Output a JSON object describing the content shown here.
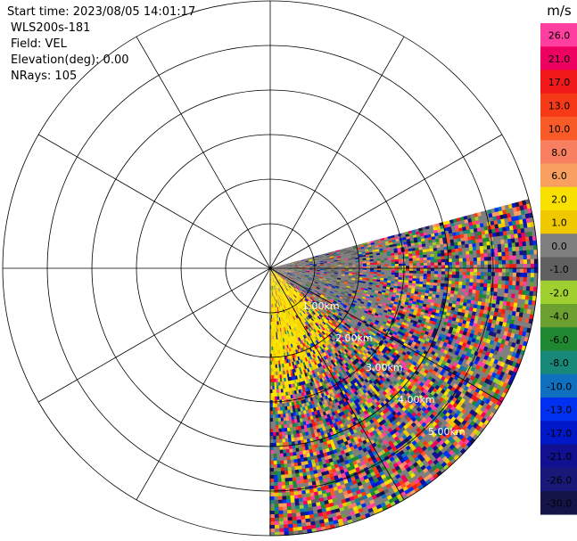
{
  "header": {
    "start_time": "Start time: 2023/08/05 14:01:17",
    "instrument": "WLS200s-181",
    "field": "Field: VEL",
    "elevation": "Elevation(deg): 0.00",
    "nrays": "NRays: 105"
  },
  "chart_data": {
    "type": "heatmap",
    "projection": "polar PPI",
    "range_labels": [
      "1.00km",
      "2.00km",
      "3.00km",
      "4.00km",
      "5.00km"
    ],
    "range_rings_km": [
      1,
      2,
      3,
      4,
      5,
      6
    ],
    "spokes_deg_step": 30,
    "data_sector_azimuth_deg": [
      75,
      180
    ],
    "data_max_range_km": 6,
    "colorbar": {
      "unit": "m/s",
      "ticks": [
        "26.0",
        "21.0",
        "17.0",
        "13.0",
        "10.0",
        "8.0",
        "6.0",
        "2.0",
        "1.0",
        "0.0",
        "-1.0",
        "-2.0",
        "-4.0",
        "-6.0",
        "-8.0",
        "-10.0",
        "-13.0",
        "-17.0",
        "-21.0",
        "-26.0",
        "-30.0"
      ],
      "colors": [
        "#ff3fa0",
        "#ee0060",
        "#f01818",
        "#f63a18",
        "#f85a28",
        "#f88060",
        "#f8a060",
        "#f8e000",
        "#f0c800",
        "#7f7f7f",
        "#606060",
        "#a0d030",
        "#6ca030",
        "#208830",
        "#188878",
        "#1070c0",
        "#0030f0",
        "#0018c8",
        "#101090",
        "#181878",
        "#141448"
      ]
    }
  }
}
